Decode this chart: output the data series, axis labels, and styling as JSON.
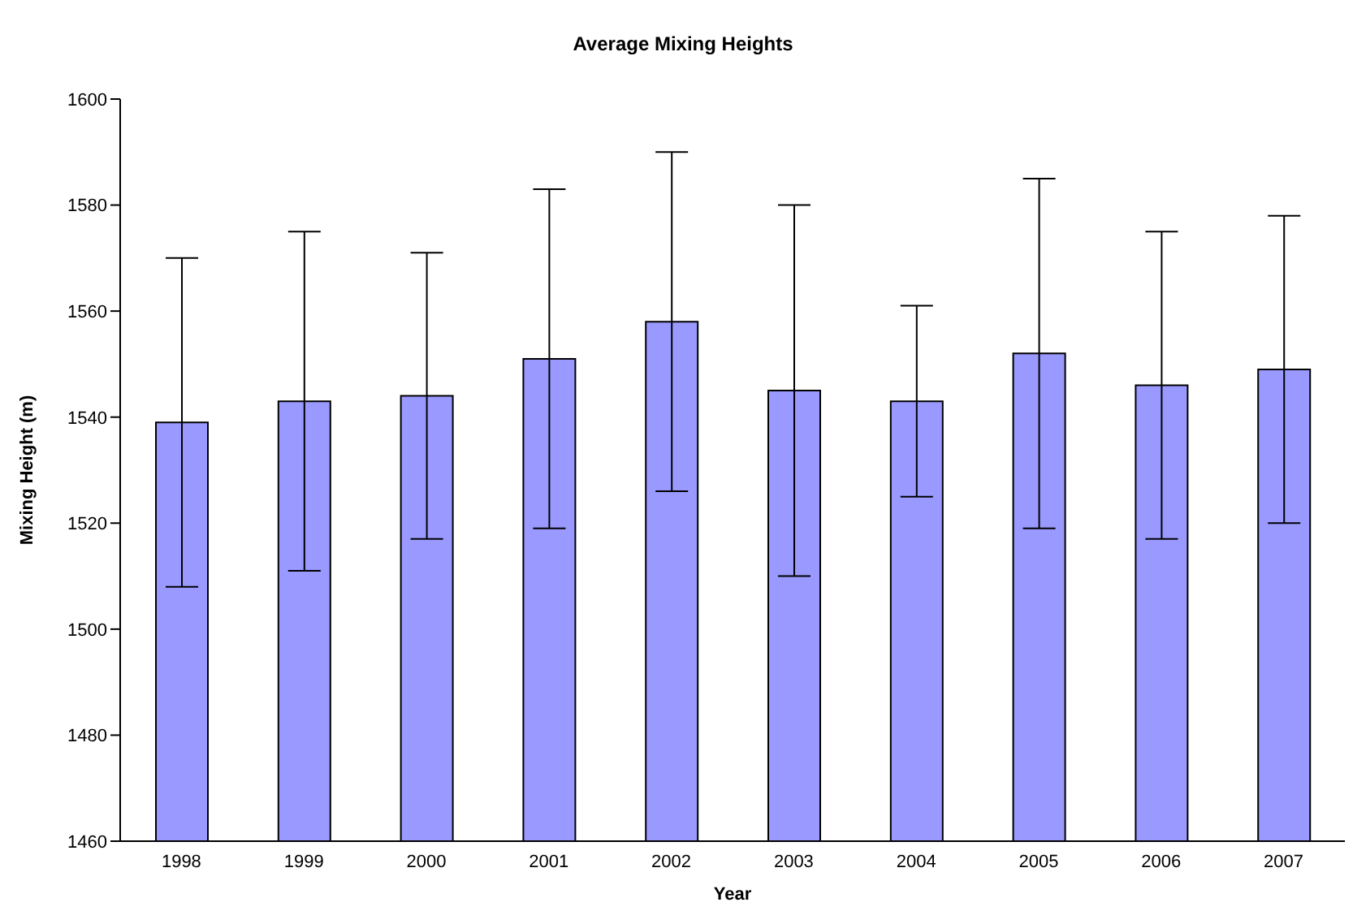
{
  "chart_data": {
    "type": "bar",
    "title": "Average Mixing Heights",
    "xlabel": "Year",
    "ylabel": "Mixing Height (m)",
    "categories": [
      "1998",
      "1999",
      "2000",
      "2001",
      "2002",
      "2003",
      "2004",
      "2005",
      "2006",
      "2007"
    ],
    "values": [
      1539,
      1543,
      1544,
      1551,
      1558,
      1545,
      1543,
      1552,
      1546,
      1549
    ],
    "errors": [
      [
        1508,
        1570
      ],
      [
        1511,
        1575
      ],
      [
        1517,
        1571
      ],
      [
        1519,
        1583
      ],
      [
        1526,
        1590
      ],
      [
        1510,
        1580
      ],
      [
        1525,
        1561
      ],
      [
        1519,
        1585
      ],
      [
        1517,
        1575
      ],
      [
        1520,
        1578
      ]
    ],
    "color": "#9999ff",
    "ylim": [
      1460,
      1600
    ],
    "yticks": [
      1460,
      1480,
      1500,
      1520,
      1540,
      1560,
      1580,
      1600
    ],
    "grid": false,
    "legend": false
  }
}
